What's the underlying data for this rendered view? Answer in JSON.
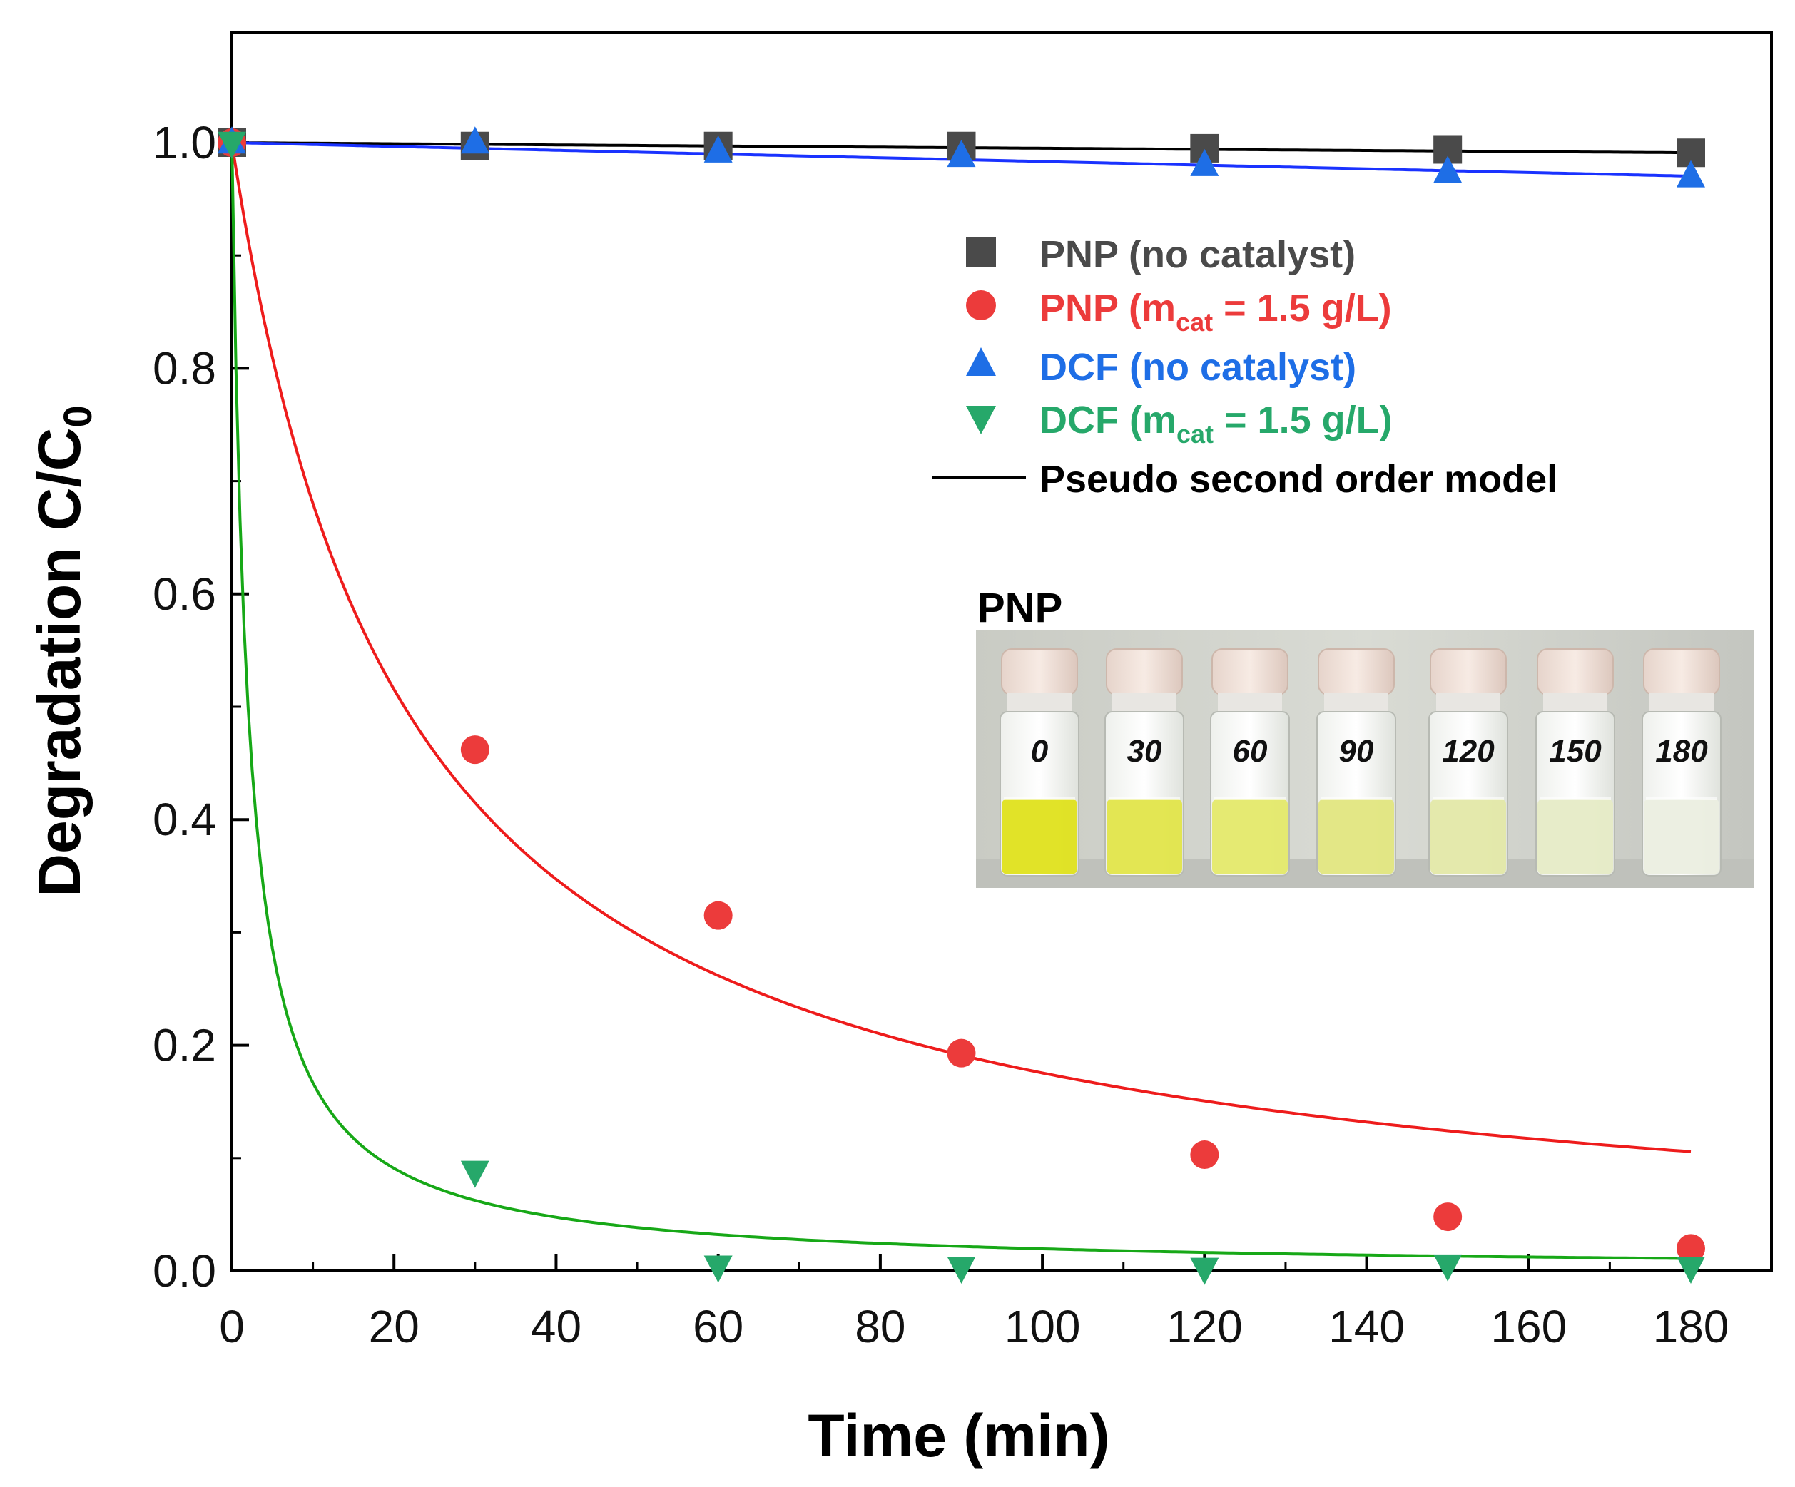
{
  "chart_data": {
    "type": "scatter",
    "title": "",
    "xlabel": "Time (min)",
    "ylabel": "Degradation C/C",
    "ylabel_subscript": "0",
    "xlim": [
      0,
      190
    ],
    "ylim": [
      0,
      1.1
    ],
    "xticks": [
      0,
      20,
      40,
      60,
      80,
      100,
      120,
      140,
      160,
      180
    ],
    "yticks": [
      0.0,
      0.2,
      0.4,
      0.6,
      0.8,
      1.0
    ],
    "xtick_labels": [
      "0",
      "20",
      "40",
      "60",
      "80",
      "100",
      "120",
      "140",
      "160",
      "180"
    ],
    "ytick_labels": [
      "0.0",
      "0.2",
      "0.4",
      "0.6",
      "0.8",
      "1.0"
    ],
    "grid": false,
    "legend_position": "top-right",
    "series": [
      {
        "name": "PNP (no catalyst)",
        "label_main": "PNP (no catalyst)",
        "label_sub": "",
        "label_tail": "",
        "marker": "square",
        "color": "#4a4a4a",
        "x": [
          0,
          30,
          60,
          90,
          120,
          150,
          180
        ],
        "y": [
          1.0,
          0.997,
          0.997,
          0.997,
          0.995,
          0.994,
          0.991
        ],
        "fit": {
          "k": 5e-05,
          "color": "#000000"
        }
      },
      {
        "name": "PNP (mcat = 1.5 g/L)",
        "label_main": "PNP (m",
        "label_sub": "cat",
        "label_tail": " = 1.5 g/L)",
        "marker": "circle",
        "color": "#ec3b3b",
        "x": [
          0,
          30,
          60,
          90,
          120,
          150,
          180
        ],
        "y": [
          1.0,
          0.462,
          0.315,
          0.193,
          0.103,
          0.048,
          0.02
        ],
        "fit": {
          "k": 0.047,
          "color": "#ee1c1c"
        }
      },
      {
        "name": "DCF (no catalyst)",
        "label_main": "DCF (no catalyst)",
        "label_sub": "",
        "label_tail": "",
        "marker": "triangle-up",
        "color": "#1e6ee6",
        "x": [
          0,
          30,
          60,
          90,
          120,
          150,
          180
        ],
        "y": [
          1.0,
          1.0,
          0.992,
          0.988,
          0.98,
          0.974,
          0.97
        ],
        "fit": {
          "k": 0.00017,
          "color": "#1a32ff"
        }
      },
      {
        "name": "DCF (mcat = 1.5 g/L)",
        "label_main": "DCF (m",
        "label_sub": "cat",
        "label_tail": " = 1.5 g/L)",
        "marker": "triangle-down",
        "color": "#26a86a",
        "x": [
          0,
          30,
          60,
          90,
          120,
          150,
          180
        ],
        "y": [
          1.0,
          0.088,
          0.004,
          0.003,
          0.002,
          0.005,
          0.003
        ],
        "fit": {
          "k": 0.5,
          "color": "#17a817"
        }
      }
    ],
    "model_legend": {
      "label": "Pseudo second order model",
      "color": "#000000"
    },
    "inset": {
      "title": "PNP",
      "vial_labels": [
        "0",
        "30",
        "60",
        "90",
        "120",
        "150",
        "180"
      ],
      "vial_colors": [
        "#dfe21c",
        "#e1e54a",
        "#e4e96a",
        "#e2e680",
        "#e3e8a8",
        "#e6ebc6",
        "#ebeee0"
      ]
    }
  }
}
